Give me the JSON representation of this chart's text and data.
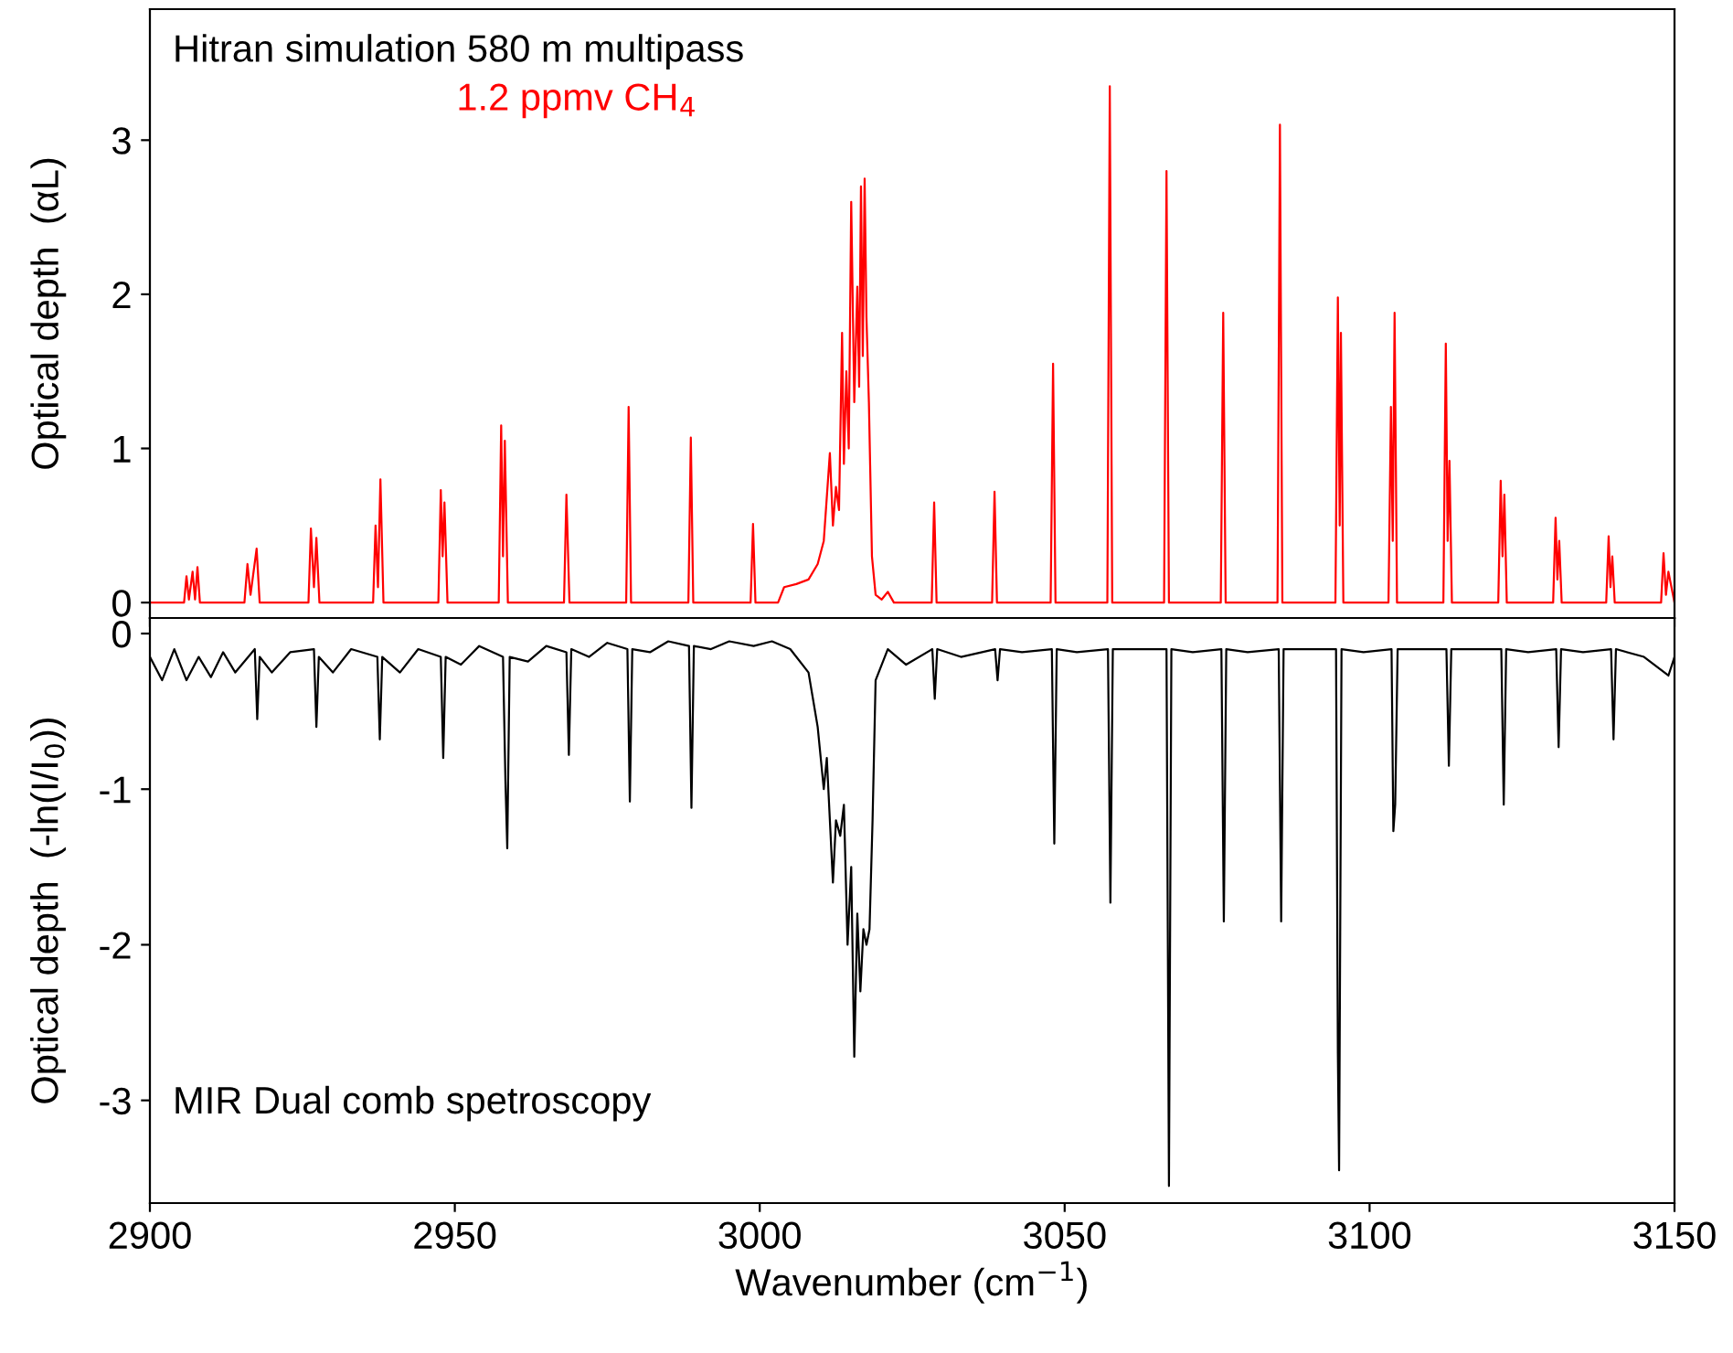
{
  "chart_data": [
    {
      "type": "line",
      "ylabel": "Optical depth  (αL)",
      "annotations": [
        "Hitran simulation 580 m multipass"
      ],
      "xlim": [
        2900,
        3150
      ],
      "xticks": [
        2900,
        2950,
        3000,
        3050,
        3100,
        3150
      ],
      "ylim": [
        -0.1,
        3.85
      ],
      "yticks": [
        0,
        1,
        2,
        3
      ],
      "tick_labels": "y",
      "series": [
        {
          "name": "1.2 ppmv CH$_{4}$",
          "color": "#ff0000",
          "x": [
            2900,
            2905.6,
            2906,
            2906.4,
            2907,
            2907.4,
            2907.8,
            2908.2,
            2915.5,
            2916,
            2916.5,
            2917.5,
            2918,
            2926,
            2926.4,
            2926.9,
            2927.3,
            2927.8,
            2936.6,
            2937,
            2937.4,
            2937.8,
            2938.3,
            2947.3,
            2947.7,
            2948,
            2948.3,
            2948.8,
            2957.2,
            2957.6,
            2957.9,
            2958.2,
            2958.7,
            2967.9,
            2968.3,
            2968.8,
            2978.1,
            2978.5,
            2978.9,
            2988.3,
            2988.7,
            2989.1,
            2998.5,
            2998.9,
            2999.3,
            3003,
            3004,
            3006,
            3008,
            3009.5,
            3010.5,
            3011.5,
            3012,
            3012.5,
            3013,
            3013.5,
            3013.8,
            3014.2,
            3014.6,
            3015,
            3015.5,
            3016,
            3016.3,
            3016.6,
            3016.9,
            3017.2,
            3017.5,
            3017.9,
            3018.4,
            3019,
            3020,
            3021,
            3022,
            3028.2,
            3028.6,
            3029,
            3038.1,
            3038.5,
            3038.9,
            3047.7,
            3048.1,
            3048.5,
            3057,
            3057.4,
            3057.8,
            3066.3,
            3066.7,
            3067.1,
            3075.6,
            3076,
            3076.4,
            3084.9,
            3085.3,
            3085.7,
            3094.4,
            3094.8,
            3095.1,
            3095.3,
            3095.7,
            3103.1,
            3103.5,
            3103.8,
            3104.1,
            3104.5,
            3112.1,
            3112.5,
            3112.8,
            3113.1,
            3113.5,
            3121.1,
            3121.5,
            3121.8,
            3122.1,
            3122.5,
            3130.1,
            3130.5,
            3130.8,
            3131.1,
            3131.5,
            3138.8,
            3139.2,
            3139.5,
            3139.8,
            3140.2,
            3147.8,
            3148.2,
            3148.6,
            3149,
            3150
          ],
          "values": [
            0,
            0,
            0.17,
            0.02,
            0.2,
            0.02,
            0.23,
            0,
            0,
            0.25,
            0.05,
            0.35,
            0,
            0,
            0.48,
            0.1,
            0.42,
            0,
            0,
            0.5,
            0.1,
            0.8,
            0,
            0,
            0.73,
            0.3,
            0.65,
            0,
            0,
            1.15,
            0.3,
            1.05,
            0,
            0,
            0.7,
            0,
            0,
            1.27,
            0,
            0,
            1.07,
            0,
            0,
            0.51,
            0,
            0,
            0.1,
            0.12,
            0.15,
            0.25,
            0.4,
            0.97,
            0.5,
            0.75,
            0.6,
            1.75,
            0.9,
            1.5,
            1.0,
            2.6,
            1.3,
            2.05,
            1.4,
            2.7,
            1.6,
            2.75,
            1.85,
            1.3,
            0.3,
            0.05,
            0.02,
            0.07,
            0,
            0,
            0.65,
            0,
            0,
            0.72,
            0,
            0,
            1.55,
            0,
            0,
            3.35,
            0,
            0,
            2.8,
            0,
            0,
            1.88,
            0,
            0,
            3.1,
            0,
            0,
            1.98,
            0.5,
            1.75,
            0,
            0,
            1.27,
            0.4,
            1.88,
            0,
            0,
            1.68,
            0.4,
            0.92,
            0,
            0,
            0.79,
            0.3,
            0.7,
            0,
            0,
            0.55,
            0.15,
            0.4,
            0,
            0,
            0.43,
            0.1,
            0.3,
            0,
            0,
            0.32,
            0.05,
            0.2,
            0
          ]
        }
      ]
    },
    {
      "type": "line",
      "xlabel": "Wavenumber (cm$^{−1}$)",
      "ylabel": "Optical depth  (-ln(I/I$_{0}$))",
      "annotations": [
        "MIR Dual comb spetroscopy"
      ],
      "xlim": [
        2900,
        3150
      ],
      "xticks": [
        2900,
        2950,
        3000,
        3050,
        3100,
        3150
      ],
      "ylim": [
        -3.66,
        0.1
      ],
      "yticks": [
        0,
        -1,
        -2,
        -3
      ],
      "series": [
        {
          "color": "#000000",
          "x": [
            2900,
            2902,
            2904,
            2906,
            2908,
            2910,
            2912,
            2914,
            2917.2,
            2917.6,
            2918,
            2920,
            2923,
            2926.9,
            2927.3,
            2927.7,
            2930,
            2933,
            2937.3,
            2937.7,
            2938.1,
            2941,
            2944,
            2947.7,
            2948.1,
            2948.5,
            2951,
            2954,
            2957.9,
            2958.3,
            2958.6,
            2959,
            2962,
            2965,
            2968.3,
            2968.7,
            2969.1,
            2972,
            2975,
            2978.3,
            2978.7,
            2979.1,
            2982,
            2985,
            2988.4,
            2988.8,
            2989.2,
            2992,
            2995,
            2999,
            3002,
            3005,
            3008,
            3009.5,
            3010.5,
            3011,
            3012,
            3012.5,
            3013.2,
            3013.8,
            3014.4,
            3015,
            3015.5,
            3016,
            3016.5,
            3017,
            3017.5,
            3018,
            3018.5,
            3019,
            3021,
            3024,
            3028.3,
            3028.7,
            3029.1,
            3033,
            3038.6,
            3039,
            3039.4,
            3043,
            3047.9,
            3048.3,
            3048.7,
            3052,
            3057.1,
            3057.5,
            3057.9,
            3062,
            3066.7,
            3067.1,
            3067.5,
            3071,
            3075.7,
            3076.1,
            3076.5,
            3080,
            3085.1,
            3085.5,
            3085.9,
            3090,
            3094.5,
            3094.8,
            3095,
            3095.4,
            3099,
            3103.6,
            3103.9,
            3104.2,
            3104.6,
            3108,
            3112.6,
            3113,
            3113.4,
            3117,
            3121.6,
            3122,
            3122.4,
            3126,
            3130.6,
            3131,
            3131.4,
            3135,
            3139.6,
            3140,
            3140.4,
            3145,
            3149,
            3150
          ],
          "values": [
            -0.15,
            -0.3,
            -0.1,
            -0.3,
            -0.15,
            -0.28,
            -0.12,
            -0.25,
            -0.1,
            -0.55,
            -0.15,
            -0.25,
            -0.12,
            -0.1,
            -0.6,
            -0.15,
            -0.25,
            -0.1,
            -0.15,
            -0.68,
            -0.15,
            -0.25,
            -0.1,
            -0.15,
            -0.8,
            -0.15,
            -0.2,
            -0.08,
            -0.15,
            -0.95,
            -1.38,
            -0.15,
            -0.18,
            -0.08,
            -0.12,
            -0.78,
            -0.1,
            -0.15,
            -0.06,
            -0.1,
            -1.08,
            -0.1,
            -0.12,
            -0.05,
            -0.08,
            -1.12,
            -0.08,
            -0.1,
            -0.05,
            -0.08,
            -0.05,
            -0.1,
            -0.25,
            -0.6,
            -1.0,
            -0.8,
            -1.6,
            -1.2,
            -1.3,
            -1.1,
            -2.0,
            -1.5,
            -2.72,
            -1.8,
            -2.3,
            -1.9,
            -2.0,
            -1.9,
            -1.2,
            -0.3,
            -0.1,
            -0.2,
            -0.1,
            -0.42,
            -0.1,
            -0.15,
            -0.1,
            -0.3,
            -0.1,
            -0.12,
            -0.1,
            -1.35,
            -0.1,
            -0.12,
            -0.1,
            -1.73,
            -0.1,
            -0.1,
            -0.1,
            -3.55,
            -0.1,
            -0.12,
            -0.1,
            -1.85,
            -0.1,
            -0.12,
            -0.1,
            -1.85,
            -0.1,
            -0.1,
            -0.1,
            -2.7,
            -3.45,
            -0.1,
            -0.12,
            -0.1,
            -1.27,
            -1.1,
            -0.1,
            -0.1,
            -0.1,
            -0.85,
            -0.1,
            -0.1,
            -0.1,
            -1.1,
            -0.1,
            -0.12,
            -0.1,
            -0.73,
            -0.1,
            -0.12,
            -0.1,
            -0.68,
            -0.1,
            -0.15,
            -0.27,
            -0.15
          ]
        }
      ]
    }
  ]
}
